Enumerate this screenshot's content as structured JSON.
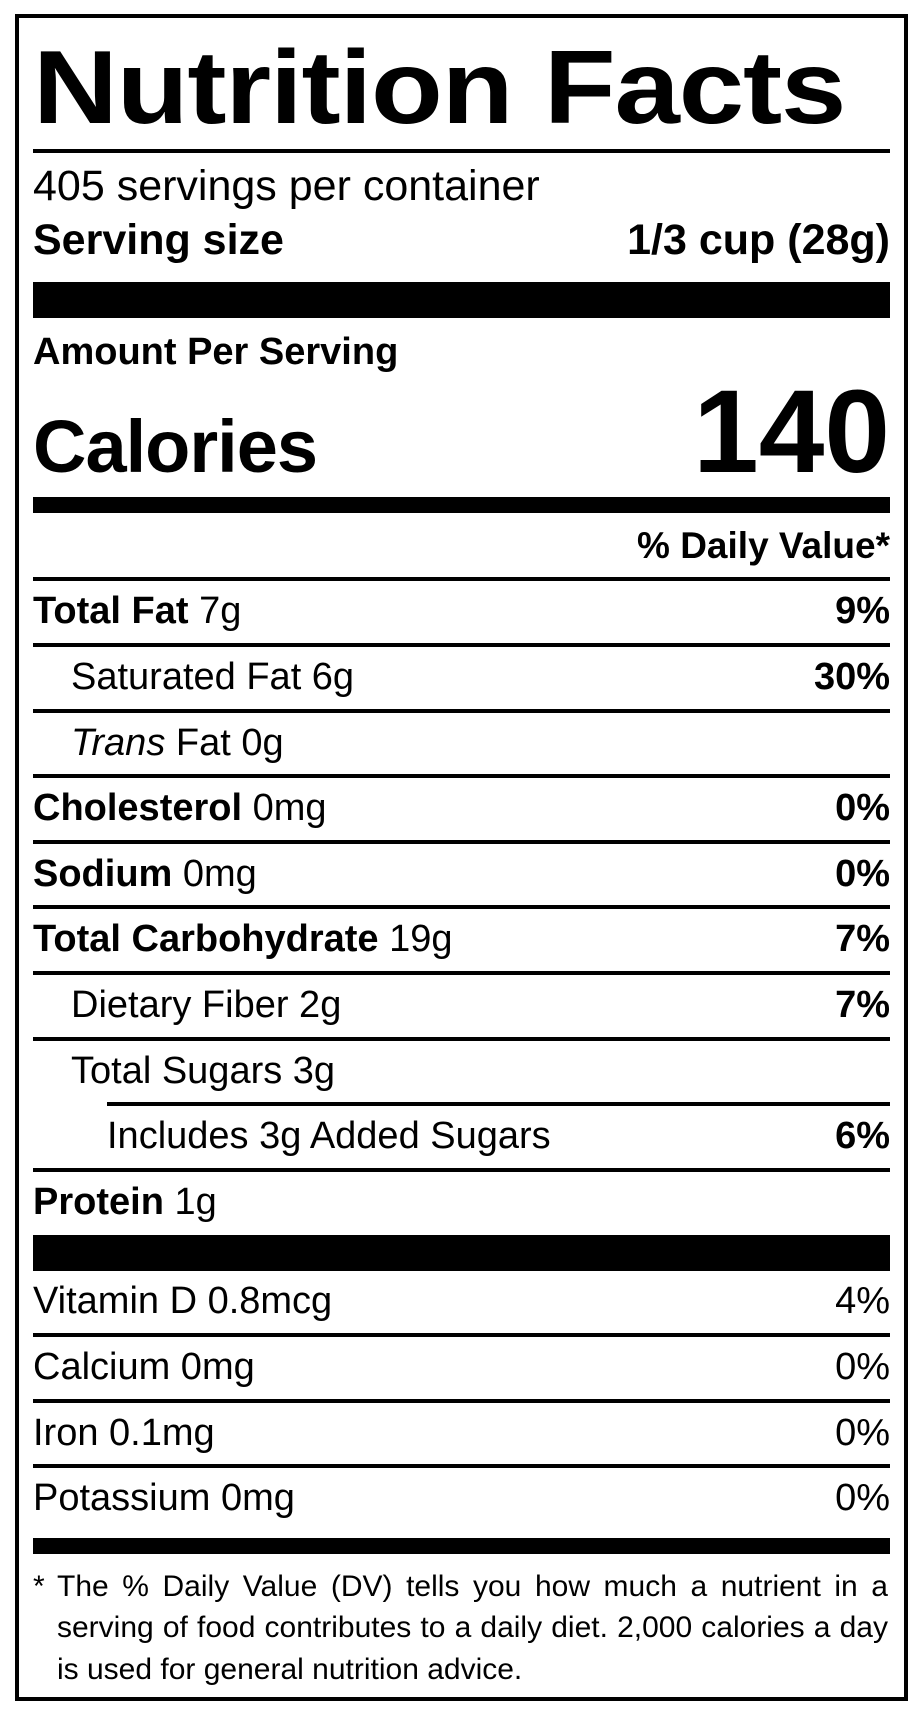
{
  "colors": {
    "ink": "#000000",
    "background": "#ffffff"
  },
  "label": {
    "title": "Nutrition Facts",
    "servings_per_container": "405 servings per container",
    "serving_size": {
      "label": "Serving size",
      "value": "1/3 cup (28g)"
    },
    "amount_per_serving": "Amount Per Serving",
    "calories": {
      "label": "Calories",
      "value": "140"
    },
    "daily_value_header": "% Daily Value*",
    "nutrient_rows": [
      {
        "parts": [
          {
            "text": "Total Fat",
            "style": "b"
          },
          {
            "text": "7g",
            "style": "r"
          }
        ],
        "dv": "9%",
        "dv_bold": true,
        "indent": 0
      },
      {
        "parts": [
          {
            "text": "Saturated Fat 6g",
            "style": "r"
          }
        ],
        "dv": "30%",
        "dv_bold": true,
        "indent": 1
      },
      {
        "parts": [
          {
            "text": "Trans",
            "style": "i"
          },
          {
            "text": "Fat 0g",
            "style": "r"
          }
        ],
        "dv": "",
        "dv_bold": true,
        "indent": 1
      },
      {
        "parts": [
          {
            "text": "Cholesterol",
            "style": "b"
          },
          {
            "text": "0mg",
            "style": "r"
          }
        ],
        "dv": "0%",
        "dv_bold": true,
        "indent": 0
      },
      {
        "parts": [
          {
            "text": "Sodium",
            "style": "b"
          },
          {
            "text": "0mg",
            "style": "r"
          }
        ],
        "dv": "0%",
        "dv_bold": true,
        "indent": 0
      },
      {
        "parts": [
          {
            "text": "Total Carbohydrate",
            "style": "b"
          },
          {
            "text": "19g",
            "style": "r"
          }
        ],
        "dv": "7%",
        "dv_bold": true,
        "indent": 0
      },
      {
        "parts": [
          {
            "text": "Dietary Fiber 2g",
            "style": "r"
          }
        ],
        "dv": "7%",
        "dv_bold": true,
        "indent": 1
      },
      {
        "parts": [
          {
            "text": "Total Sugars 3g",
            "style": "r"
          }
        ],
        "dv": "",
        "dv_bold": true,
        "indent": 1
      },
      {
        "parts": [
          {
            "text": "Includes 3g Added Sugars",
            "style": "r"
          }
        ],
        "dv": "6%",
        "dv_bold": true,
        "indent": 2,
        "indented_divider": true
      },
      {
        "parts": [
          {
            "text": "Protein",
            "style": "b"
          },
          {
            "text": "1g",
            "style": "r"
          }
        ],
        "dv": "",
        "dv_bold": true,
        "indent": 0
      }
    ],
    "vitamin_rows": [
      {
        "parts": [
          {
            "text": "Vitamin D 0.8mcg",
            "style": "r"
          }
        ],
        "dv": "4%",
        "dv_bold": false,
        "indent": 0
      },
      {
        "parts": [
          {
            "text": "Calcium 0mg",
            "style": "r"
          }
        ],
        "dv": "0%",
        "dv_bold": false,
        "indent": 0
      },
      {
        "parts": [
          {
            "text": "Iron 0.1mg",
            "style": "r"
          }
        ],
        "dv": "0%",
        "dv_bold": false,
        "indent": 0
      },
      {
        "parts": [
          {
            "text": "Potassium 0mg",
            "style": "r"
          }
        ],
        "dv": "0%",
        "dv_bold": false,
        "indent": 0
      }
    ],
    "footnote": {
      "marker": "*",
      "text": "The % Daily Value (DV) tells you how much a nutrient in a serving of food contributes to a daily diet. 2,000 calories a day is used for general nutrition advice."
    }
  }
}
